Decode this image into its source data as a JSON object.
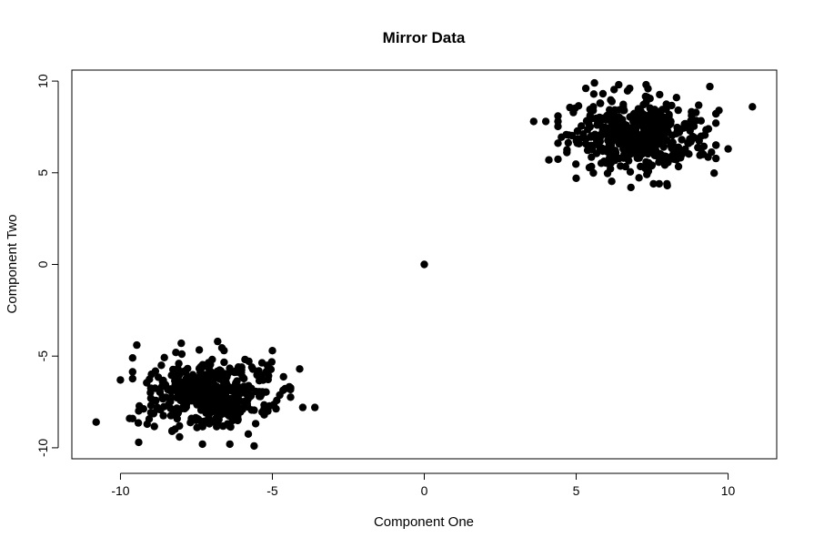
{
  "chart_data": {
    "type": "scatter",
    "title": "Mirror Data",
    "xlabel": "Component One",
    "ylabel": "Component Two",
    "xlim": [
      -11.6,
      11.6
    ],
    "ylim": [
      -10.6,
      10.6
    ],
    "xticks": [
      -10,
      -5,
      0,
      5,
      10
    ],
    "yticks": [
      -10,
      -5,
      0,
      5,
      10
    ],
    "xtick_labels": [
      "-10",
      "-5",
      "0",
      "5",
      "10"
    ],
    "ytick_labels": [
      "-10",
      "-5",
      "0",
      "5",
      "10"
    ],
    "grid": false,
    "marker_color": "#000000",
    "series": [
      {
        "clusters": [
          {
            "center": [
              7.0,
              7.0
            ],
            "spread": [
              1.05,
              0.9
            ],
            "count": 500
          },
          {
            "center": [
              -7.0,
              -7.0
            ],
            "spread": [
              1.05,
              0.9
            ],
            "count": 500
          }
        ],
        "points": [
          [
            0.0,
            0.0
          ],
          [
            10.8,
            8.6
          ],
          [
            -10.8,
            -8.6
          ],
          [
            9.4,
            9.7
          ],
          [
            -9.4,
            -9.7
          ],
          [
            3.6,
            7.8
          ],
          [
            -3.6,
            -7.8
          ],
          [
            4.0,
            7.8
          ],
          [
            -4.0,
            -7.8
          ],
          [
            4.1,
            5.7
          ],
          [
            -4.1,
            -5.7
          ],
          [
            5.6,
            9.9
          ],
          [
            -5.6,
            -9.9
          ],
          [
            6.4,
            9.8
          ],
          [
            -6.4,
            -9.8
          ],
          [
            6.8,
            4.2
          ],
          [
            -6.8,
            -4.2
          ],
          [
            8.0,
            4.3
          ],
          [
            -8.0,
            -4.3
          ],
          [
            10.0,
            6.3
          ],
          [
            -10.0,
            -6.3
          ],
          [
            9.7,
            8.4
          ],
          [
            -9.7,
            -8.4
          ],
          [
            5.0,
            4.7
          ],
          [
            -5.0,
            -4.7
          ],
          [
            8.3,
            9.1
          ],
          [
            -8.3,
            -9.1
          ],
          [
            7.3,
            9.8
          ],
          [
            -7.3,
            -9.8
          ]
        ]
      }
    ]
  }
}
